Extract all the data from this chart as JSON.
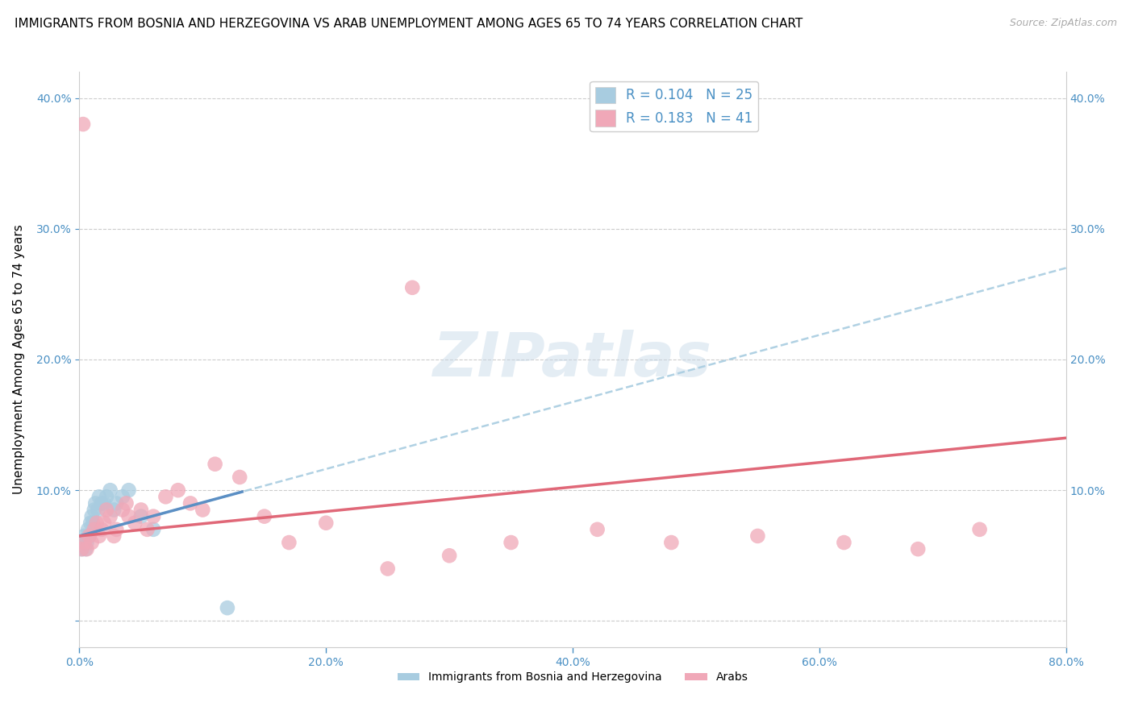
{
  "title": "IMMIGRANTS FROM BOSNIA AND HERZEGOVINA VS ARAB UNEMPLOYMENT AMONG AGES 65 TO 74 YEARS CORRELATION CHART",
  "source": "Source: ZipAtlas.com",
  "ylabel": "Unemployment Among Ages 65 to 74 years",
  "xlim": [
    0.0,
    0.8
  ],
  "ylim": [
    -0.02,
    0.42
  ],
  "yticks": [
    0.0,
    0.1,
    0.2,
    0.3,
    0.4
  ],
  "ytick_labels": [
    "",
    "10.0%",
    "20.0%",
    "30.0%",
    "40.0%"
  ],
  "xticks": [
    0.0,
    0.2,
    0.4,
    0.6,
    0.8
  ],
  "xtick_labels": [
    "0.0%",
    "20.0%",
    "40.0%",
    "60.0%",
    "80.0%"
  ],
  "blue_color": "#a8cce0",
  "pink_color": "#f0a8b8",
  "blue_line_color": "#5b8fc4",
  "pink_line_color": "#e06878",
  "blue_dashed_color": "#a8cce0",
  "legend_blue_label": "R = 0.104   N = 25",
  "legend_pink_label": "R = 0.183   N = 41",
  "watermark_text": "ZIPatlas",
  "grid_color": "#cccccc",
  "background_color": "#ffffff",
  "title_fontsize": 11,
  "axis_label_fontsize": 11,
  "tick_fontsize": 10,
  "legend_fontsize": 12,
  "blue_scatter_x": [
    0.002,
    0.003,
    0.004,
    0.005,
    0.006,
    0.007,
    0.008,
    0.009,
    0.01,
    0.011,
    0.012,
    0.013,
    0.015,
    0.016,
    0.018,
    0.02,
    0.022,
    0.025,
    0.028,
    0.03,
    0.035,
    0.04,
    0.05,
    0.06,
    0.12
  ],
  "blue_scatter_y": [
    0.055,
    0.06,
    0.065,
    0.055,
    0.06,
    0.07,
    0.065,
    0.075,
    0.08,
    0.075,
    0.085,
    0.09,
    0.085,
    0.095,
    0.09,
    0.09,
    0.095,
    0.1,
    0.085,
    0.09,
    0.095,
    0.1,
    0.08,
    0.07,
    0.01
  ],
  "pink_scatter_x": [
    0.002,
    0.004,
    0.006,
    0.008,
    0.01,
    0.012,
    0.014,
    0.016,
    0.018,
    0.02,
    0.022,
    0.025,
    0.028,
    0.03,
    0.035,
    0.038,
    0.04,
    0.045,
    0.05,
    0.055,
    0.06,
    0.07,
    0.08,
    0.09,
    0.1,
    0.11,
    0.13,
    0.15,
    0.17,
    0.2,
    0.25,
    0.3,
    0.35,
    0.42,
    0.48,
    0.55,
    0.62,
    0.68,
    0.73,
    0.003,
    0.27
  ],
  "pink_scatter_y": [
    0.055,
    0.06,
    0.055,
    0.065,
    0.06,
    0.07,
    0.075,
    0.065,
    0.07,
    0.075,
    0.085,
    0.08,
    0.065,
    0.07,
    0.085,
    0.09,
    0.08,
    0.075,
    0.085,
    0.07,
    0.08,
    0.095,
    0.1,
    0.09,
    0.085,
    0.12,
    0.11,
    0.08,
    0.06,
    0.075,
    0.04,
    0.05,
    0.06,
    0.07,
    0.06,
    0.065,
    0.06,
    0.055,
    0.07,
    0.38,
    0.255
  ]
}
